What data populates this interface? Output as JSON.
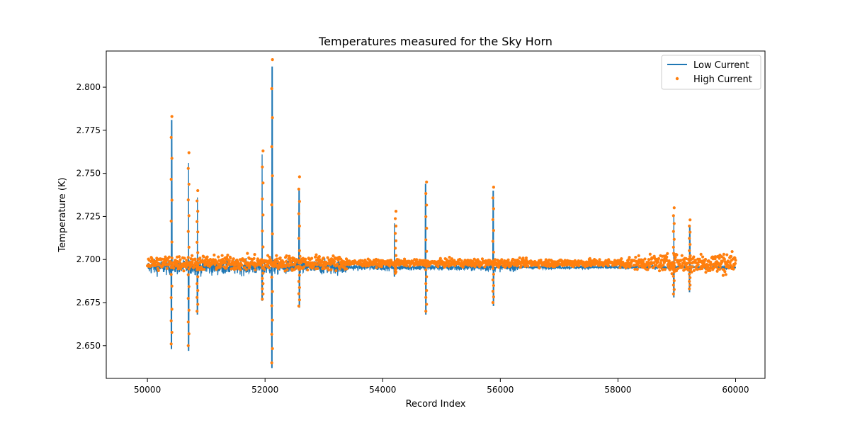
{
  "chart_data": {
    "type": "line",
    "title": "Temperatures measured for the Sky Horn",
    "xlabel": "Record Index",
    "ylabel": "Temperature (K)",
    "xlim": [
      49300,
      60500
    ],
    "ylim": [
      2.631,
      2.821
    ],
    "xticks": [
      50000,
      52000,
      54000,
      56000,
      58000,
      60000
    ],
    "yticks": [
      2.65,
      2.675,
      2.7,
      2.725,
      2.75,
      2.775,
      2.8
    ],
    "ytick_labels": [
      "2.650",
      "2.675",
      "2.700",
      "2.725",
      "2.750",
      "2.775",
      "2.800"
    ],
    "legend_position": "top-right",
    "grid": false,
    "series": [
      {
        "name": "Low Current",
        "kind": "line",
        "color": "#1f77b4",
        "x_range": [
          50000,
          60000
        ],
        "baseline": 2.6955,
        "spikes": [
          {
            "x": 50410,
            "max": 2.781,
            "min": 2.648
          },
          {
            "x": 50700,
            "max": 2.756,
            "min": 2.647
          },
          {
            "x": 50850,
            "max": 2.736,
            "min": 2.668
          },
          {
            "x": 51950,
            "max": 2.761,
            "min": 2.676
          },
          {
            "x": 52120,
            "max": 2.812,
            "min": 2.637
          },
          {
            "x": 52580,
            "max": 2.741,
            "min": 2.672
          },
          {
            "x": 54200,
            "max": 2.721,
            "min": 2.69
          },
          {
            "x": 54730,
            "max": 2.744,
            "min": 2.668
          },
          {
            "x": 55880,
            "max": 2.74,
            "min": 2.673
          },
          {
            "x": 58950,
            "max": 2.726,
            "min": 2.678
          },
          {
            "x": 59220,
            "max": 2.72,
            "min": 2.681
          }
        ]
      },
      {
        "name": "High Current",
        "kind": "scatter",
        "color": "#ff7f0e",
        "x_range": [
          50000,
          60000
        ],
        "baseline": 2.698,
        "extremes": [
          {
            "x": 50410,
            "max": 2.783,
            "min": 2.651
          },
          {
            "x": 50700,
            "max": 2.762,
            "min": 2.65
          },
          {
            "x": 50850,
            "max": 2.74,
            "min": 2.67
          },
          {
            "x": 51960,
            "max": 2.763,
            "min": 2.677
          },
          {
            "x": 52120,
            "max": 2.816,
            "min": 2.64
          },
          {
            "x": 52580,
            "max": 2.748,
            "min": 2.673
          },
          {
            "x": 54220,
            "max": 2.728,
            "min": 2.692
          },
          {
            "x": 54740,
            "max": 2.745,
            "min": 2.67
          },
          {
            "x": 55880,
            "max": 2.742,
            "min": 2.675
          },
          {
            "x": 58950,
            "max": 2.73,
            "min": 2.68
          },
          {
            "x": 59220,
            "max": 2.723,
            "min": 2.683
          }
        ]
      }
    ]
  }
}
